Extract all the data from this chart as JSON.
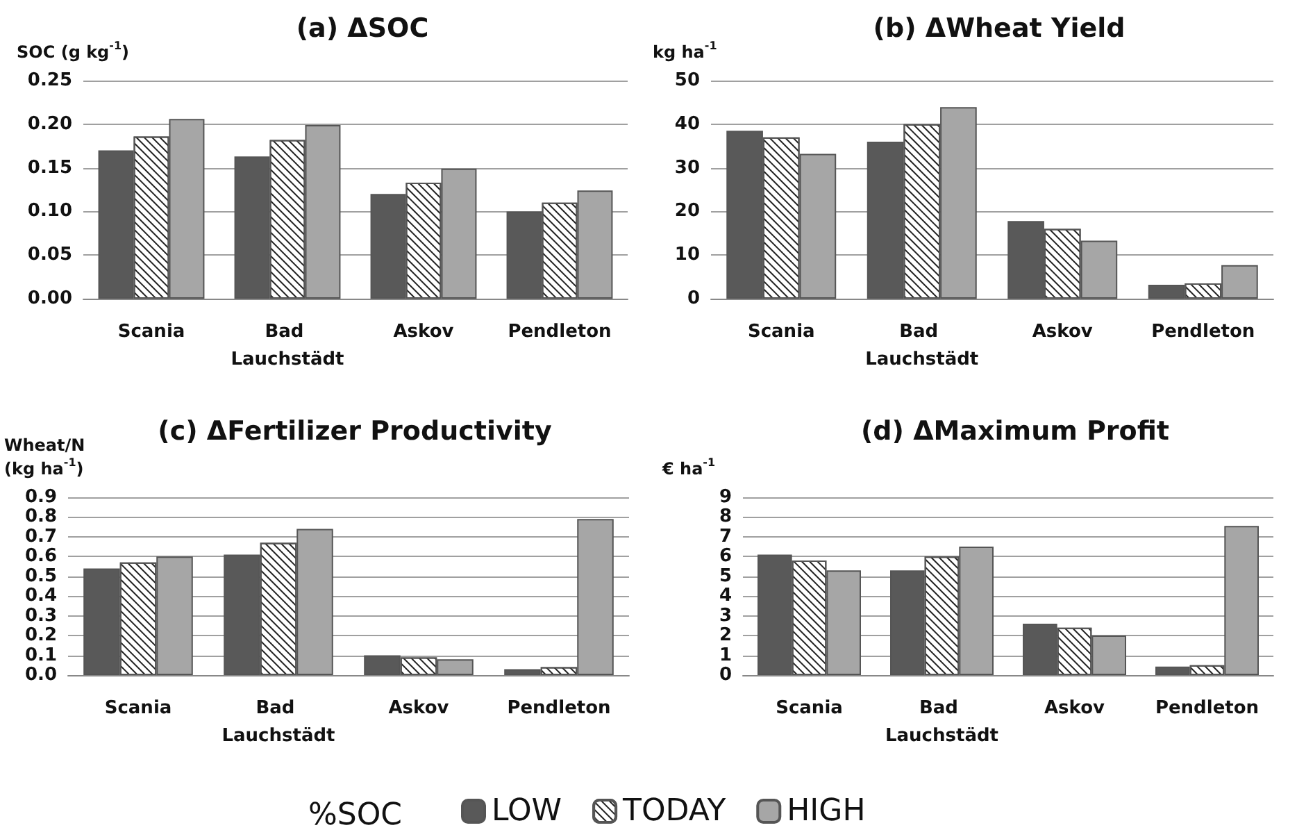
{
  "chart_data": [
    {
      "type": "bar",
      "title": "(a) ΔSOC",
      "ylabel": "SOC (g kg$^{-1}$)",
      "categories": [
        "Scania",
        "Bad Lauchstädt",
        "Askov",
        "Pendleton"
      ],
      "series": [
        {
          "color": "#595959",
          "values": [
            0.17,
            0.163,
            0.12,
            0.1
          ]
        },
        {
          "color": "#ffffff",
          "values": [
            0.186,
            0.182,
            0.133,
            0.11
          ]
        },
        {
          "color": "#a6a6a6",
          "values": [
            0.206,
            0.199,
            0.149,
            0.124
          ]
        }
      ],
      "ylim": [
        0,
        0.25
      ],
      "yticks": [
        {
          "value": 0,
          "label": "0.00"
        },
        {
          "value": 0.05,
          "label": "0.05"
        },
        {
          "value": 0.1,
          "label": "0.10"
        },
        {
          "value": 0.15,
          "label": "0.15"
        },
        {
          "value": 0.2,
          "label": "0.20"
        },
        {
          "value": 0.25,
          "label": "0.25"
        }
      ],
      "grid": "y",
      "legend": false
    },
    {
      "type": "bar",
      "title": "(b) ΔWheat Yield",
      "ylabel": "kg ha$^{-1}$",
      "categories": [
        "Scania",
        "Bad Lauchstädt",
        "Askov",
        "Pendleton"
      ],
      "series": [
        {
          "color": "#595959",
          "values": [
            38.5,
            36,
            17.8,
            3.2
          ]
        },
        {
          "color": "#ffffff",
          "values": [
            37,
            40,
            16,
            3.5
          ]
        },
        {
          "color": "#a6a6a6",
          "values": [
            33.2,
            43.9,
            13.3,
            7.7
          ]
        }
      ],
      "ylim": [
        0,
        50
      ],
      "yticks": [
        0,
        10,
        20,
        30,
        40,
        50
      ],
      "grid": "y",
      "legend": false
    },
    {
      "type": "bar",
      "title": "(c) ΔFertilizer Productivity",
      "ylabel": "Wheat/N\n(kg ha$^{-1}$)",
      "categories": [
        "Scania",
        "Bad Lauchstädt",
        "Askov",
        "Pendleton"
      ],
      "series": [
        {
          "color": "#595959",
          "values": [
            0.54,
            0.61,
            0.1,
            0.03
          ]
        },
        {
          "color": "#ffffff",
          "values": [
            0.57,
            0.67,
            0.09,
            0.04
          ]
        },
        {
          "color": "#a6a6a6",
          "values": [
            0.6,
            0.74,
            0.08,
            0.79
          ]
        }
      ],
      "ylim": [
        0,
        0.9
      ],
      "yticks": [
        {
          "value": 0,
          "label": "0.0"
        },
        0.1,
        0.2,
        0.3,
        0.4,
        0.5,
        0.6,
        0.7,
        0.8,
        0.9
      ],
      "grid": "y",
      "legend": false
    },
    {
      "type": "bar",
      "title": "(d) ΔMaximum Profit",
      "ylabel": "€ ha$^{-1}$",
      "categories": [
        "Scania",
        "Bad Lauchstädt",
        "Askov",
        "Pendleton"
      ],
      "series": [
        {
          "name": "LOW",
          "color": "#595959",
          "values": [
            6.1,
            5.3,
            2.6,
            0.43
          ]
        },
        {
          "name": "TODAY",
          "color": "#ffffff",
          "values": [
            5.8,
            6.0,
            2.4,
            0.5
          ]
        },
        {
          "name": "HIGH",
          "color": "#a6a6a6",
          "values": [
            5.3,
            6.5,
            2.0,
            7.55
          ]
        }
      ],
      "ylim": [
        0,
        9
      ],
      "yticks": [
        0,
        1,
        2,
        3,
        4,
        5,
        6,
        7,
        8,
        9
      ],
      "grid": "y",
      "legend": "bottom",
      "legend_title": "%SOC"
    }
  ]
}
